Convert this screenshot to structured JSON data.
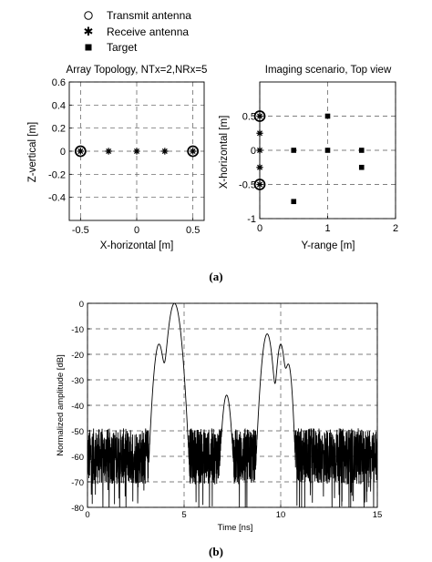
{
  "legend": {
    "items": [
      {
        "label": "Transmit antenna",
        "icon": "circle-marker-icon"
      },
      {
        "label": "Receive antenna",
        "icon": "star-marker-icon"
      },
      {
        "label": "Target",
        "icon": "square-marker-icon"
      }
    ]
  },
  "captions": {
    "a": "(a)",
    "b": "(b)"
  },
  "chart_data": [
    {
      "type": "scatter",
      "title": "Array Topology, NTx=2,NRx=5",
      "xlabel": "X-horizontal [m]",
      "ylabel": "Z-vertical [m]",
      "xlim": [
        -0.6,
        0.6
      ],
      "ylim": [
        -0.6,
        0.6
      ],
      "xticks": [
        -0.5,
        0,
        0.5
      ],
      "xtick_labels": [
        "-0.5",
        "0",
        "0.5"
      ],
      "yticks": [
        0.6,
        0.4,
        0.2,
        0,
        -0.2,
        -0.4
      ],
      "ytick_labels": [
        "0.6",
        "0.4",
        "0.2",
        "0",
        "-0.2",
        "-0.4"
      ],
      "grid": true,
      "series": [
        {
          "marker": "circle",
          "x": [
            -0.5,
            0.5
          ],
          "y": [
            0,
            0
          ]
        },
        {
          "marker": "star",
          "x": [
            -0.5,
            -0.25,
            0,
            0.25,
            0.5
          ],
          "y": [
            0,
            0,
            0,
            0,
            0
          ]
        }
      ]
    },
    {
      "type": "scatter",
      "title": "Imaging scenario, Top view",
      "xlabel": "Y-range [m]",
      "ylabel": "X-horizontal [m]",
      "xlim": [
        0,
        2
      ],
      "ylim": [
        -1,
        1
      ],
      "xticks": [
        0,
        1,
        2
      ],
      "xtick_labels": [
        "0",
        "1",
        "2"
      ],
      "yticks": [
        0.5,
        0,
        -0.5,
        -1
      ],
      "ytick_labels": [
        "0.5",
        "0",
        "-0.5",
        "-1"
      ],
      "grid": true,
      "series": [
        {
          "marker": "circle",
          "x": [
            0,
            0
          ],
          "y": [
            0.5,
            -0.5
          ]
        },
        {
          "marker": "star",
          "x": [
            0,
            0,
            0,
            0,
            0
          ],
          "y": [
            0.5,
            0.25,
            0,
            -0.25,
            -0.5
          ]
        },
        {
          "marker": "square",
          "x": [
            1,
            0.5,
            1,
            1.5,
            1.5,
            0.5
          ],
          "y": [
            0.5,
            0,
            0,
            0,
            -0.25,
            -0.75
          ]
        }
      ]
    },
    {
      "type": "line",
      "xlabel": "Time [ns]",
      "ylabel": "Normalized amplitude [dB]",
      "xlim": [
        0,
        15
      ],
      "ylim": [
        -80,
        0
      ],
      "xticks": [
        0,
        5,
        10,
        15
      ],
      "xtick_labels": [
        "0",
        "5",
        "10",
        "15"
      ],
      "yticks": [
        0,
        -10,
        -20,
        -30,
        -40,
        -50,
        -60,
        -70,
        -80
      ],
      "ytick_labels": [
        "0",
        "-10",
        "-20",
        "-30",
        "-40",
        "-50",
        "-60",
        "-70",
        "-80"
      ],
      "grid": true,
      "noise_floor_db": -60,
      "peaks": [
        {
          "x": 3.7,
          "y": -16
        },
        {
          "x": 4.5,
          "y": 0
        },
        {
          "x": 7.2,
          "y": -36
        },
        {
          "x": 9.3,
          "y": -12
        },
        {
          "x": 10.0,
          "y": -16
        },
        {
          "x": 10.4,
          "y": -24
        }
      ]
    }
  ]
}
